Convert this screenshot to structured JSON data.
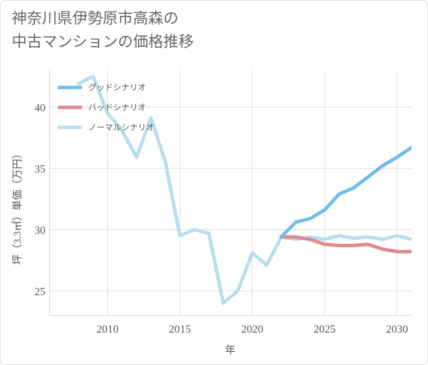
{
  "title_lines": [
    "神奈川県伊勢原市高森の",
    "中古マンションの価格推移"
  ],
  "chart_data": {
    "type": "line",
    "title": "神奈川県伊勢原市高森の中古マンションの価格推移",
    "xlabel": "年",
    "ylabel": "坪（3.3㎡）単価（万円）",
    "xlim": [
      2006,
      2031
    ],
    "ylim": [
      23,
      43
    ],
    "xticks": [
      2010,
      2015,
      2020,
      2025,
      2030
    ],
    "yticks": [
      25,
      30,
      35,
      40
    ],
    "grid": true,
    "legend_position": "top-left",
    "series": [
      {
        "name": "グッドシナリオ",
        "color": "#72bcec",
        "x": [
          2022,
          2023,
          2024,
          2025,
          2026,
          2027,
          2028,
          2029,
          2030,
          2031
        ],
        "y": [
          29.4,
          30.6,
          30.9,
          31.6,
          32.9,
          33.4,
          34.3,
          35.2,
          35.9,
          36.7
        ]
      },
      {
        "name": "バッドシナリオ",
        "color": "#e08a90",
        "x": [
          2022,
          2023,
          2024,
          2025,
          2026,
          2027,
          2028,
          2029,
          2030,
          2031
        ],
        "y": [
          29.4,
          29.4,
          29.2,
          28.8,
          28.7,
          28.7,
          28.8,
          28.4,
          28.2,
          28.2
        ]
      },
      {
        "name": "ノーマルシナリオ",
        "color": "#b7deee",
        "x": [
          2008,
          2009,
          2010,
          2011,
          2012,
          2013,
          2014,
          2015,
          2016,
          2017,
          2018,
          2019,
          2020,
          2021,
          2022,
          2023,
          2024,
          2025,
          2026,
          2027,
          2028,
          2029,
          2030,
          2031
        ],
        "y": [
          41.9,
          42.5,
          39.5,
          38.1,
          35.9,
          39.1,
          35.5,
          29.5,
          30.0,
          29.7,
          24.0,
          25.0,
          28.1,
          27.1,
          29.4,
          29.2,
          29.4,
          29.2,
          29.5,
          29.3,
          29.4,
          29.2,
          29.5,
          29.2
        ]
      }
    ]
  }
}
